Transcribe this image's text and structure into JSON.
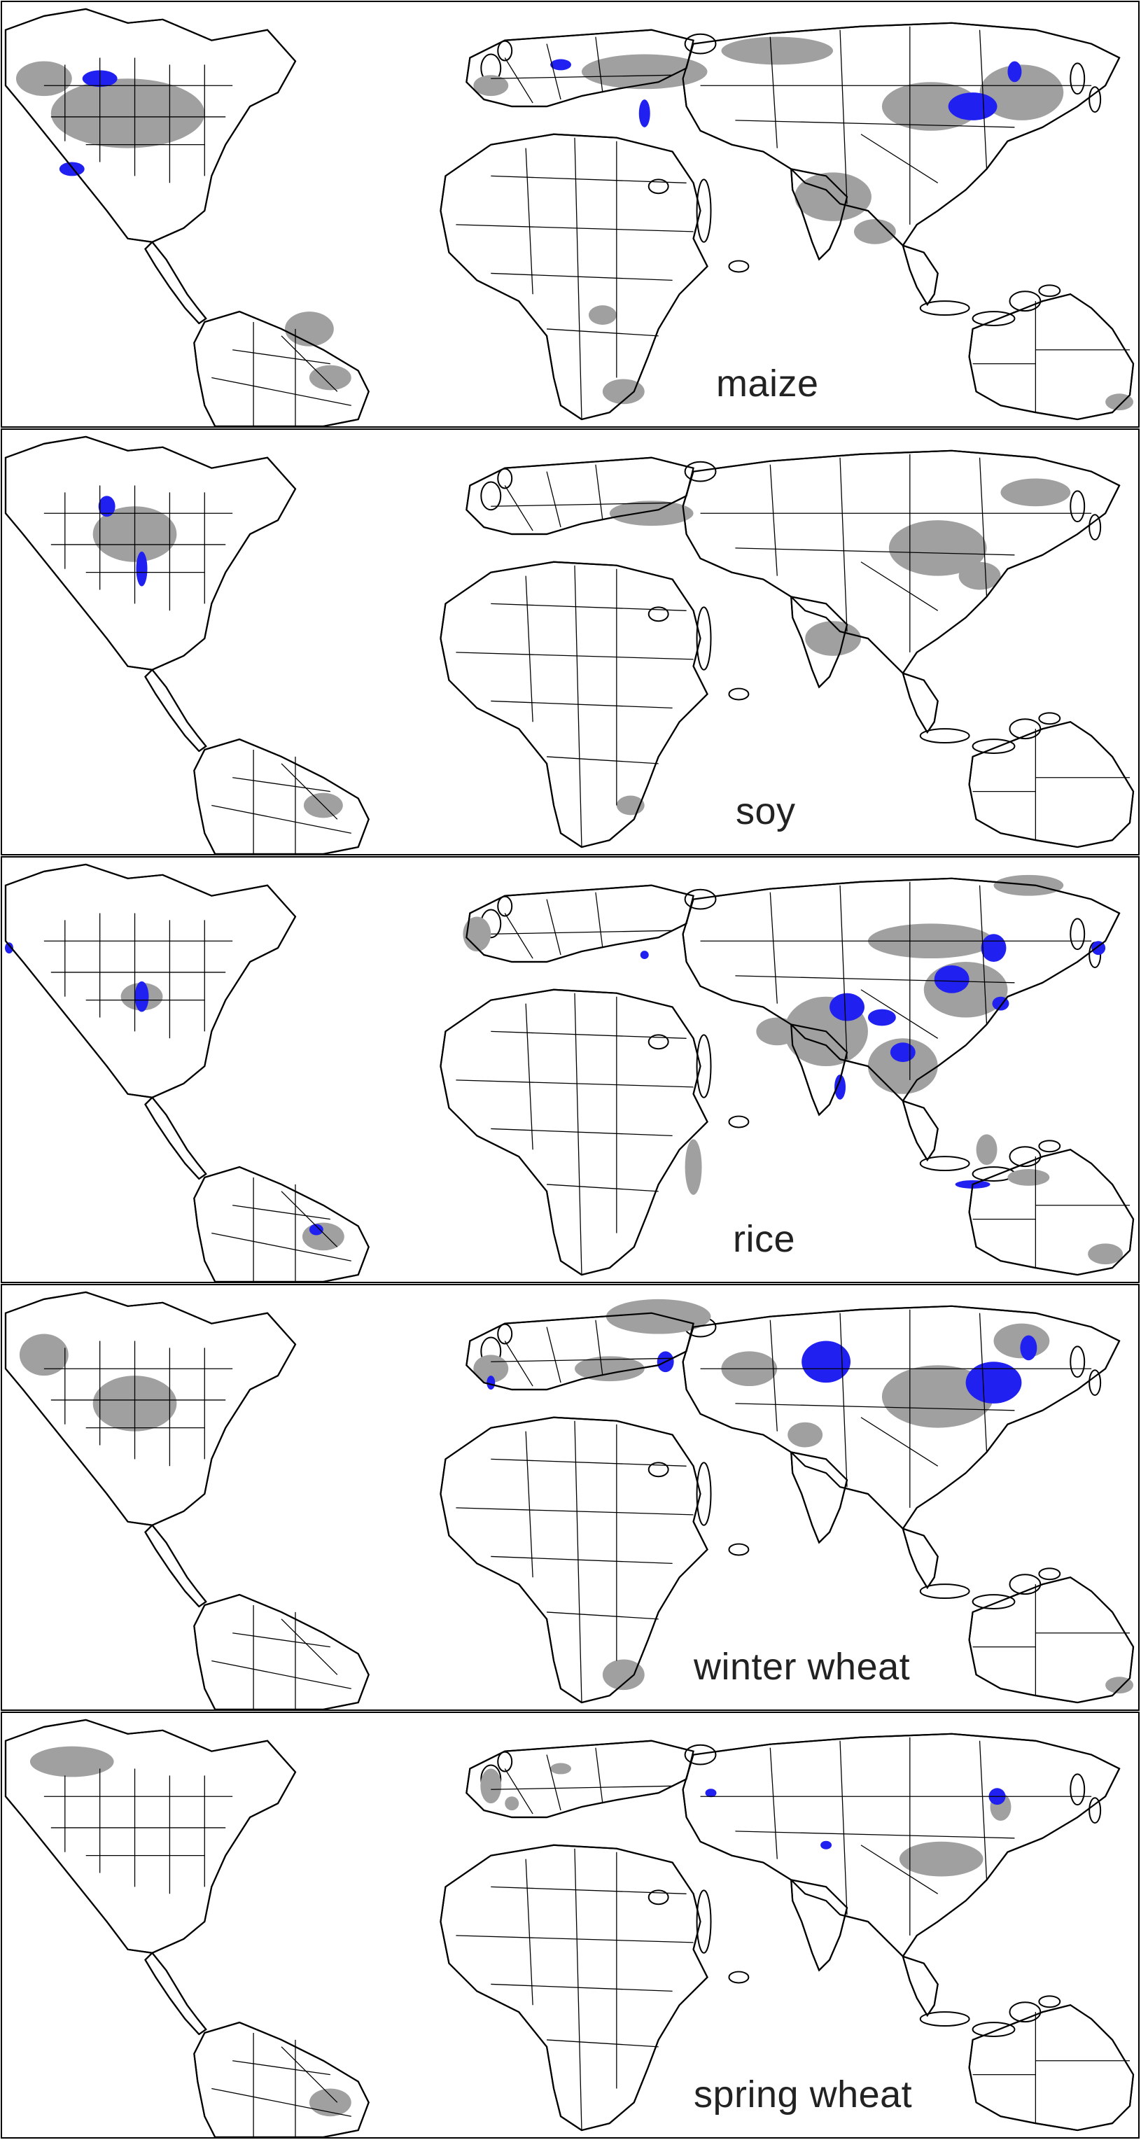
{
  "figure": {
    "panels": [
      {
        "label": "maize"
      },
      {
        "label": "soy"
      },
      {
        "label": "rice"
      },
      {
        "label": "winter wheat"
      },
      {
        "label": "spring wheat"
      }
    ]
  },
  "colors": {
    "background": "#ffffff",
    "outline": "#000000",
    "cropland_gray": "#a0a0a0",
    "highlight_blue": "#2020f0"
  }
}
